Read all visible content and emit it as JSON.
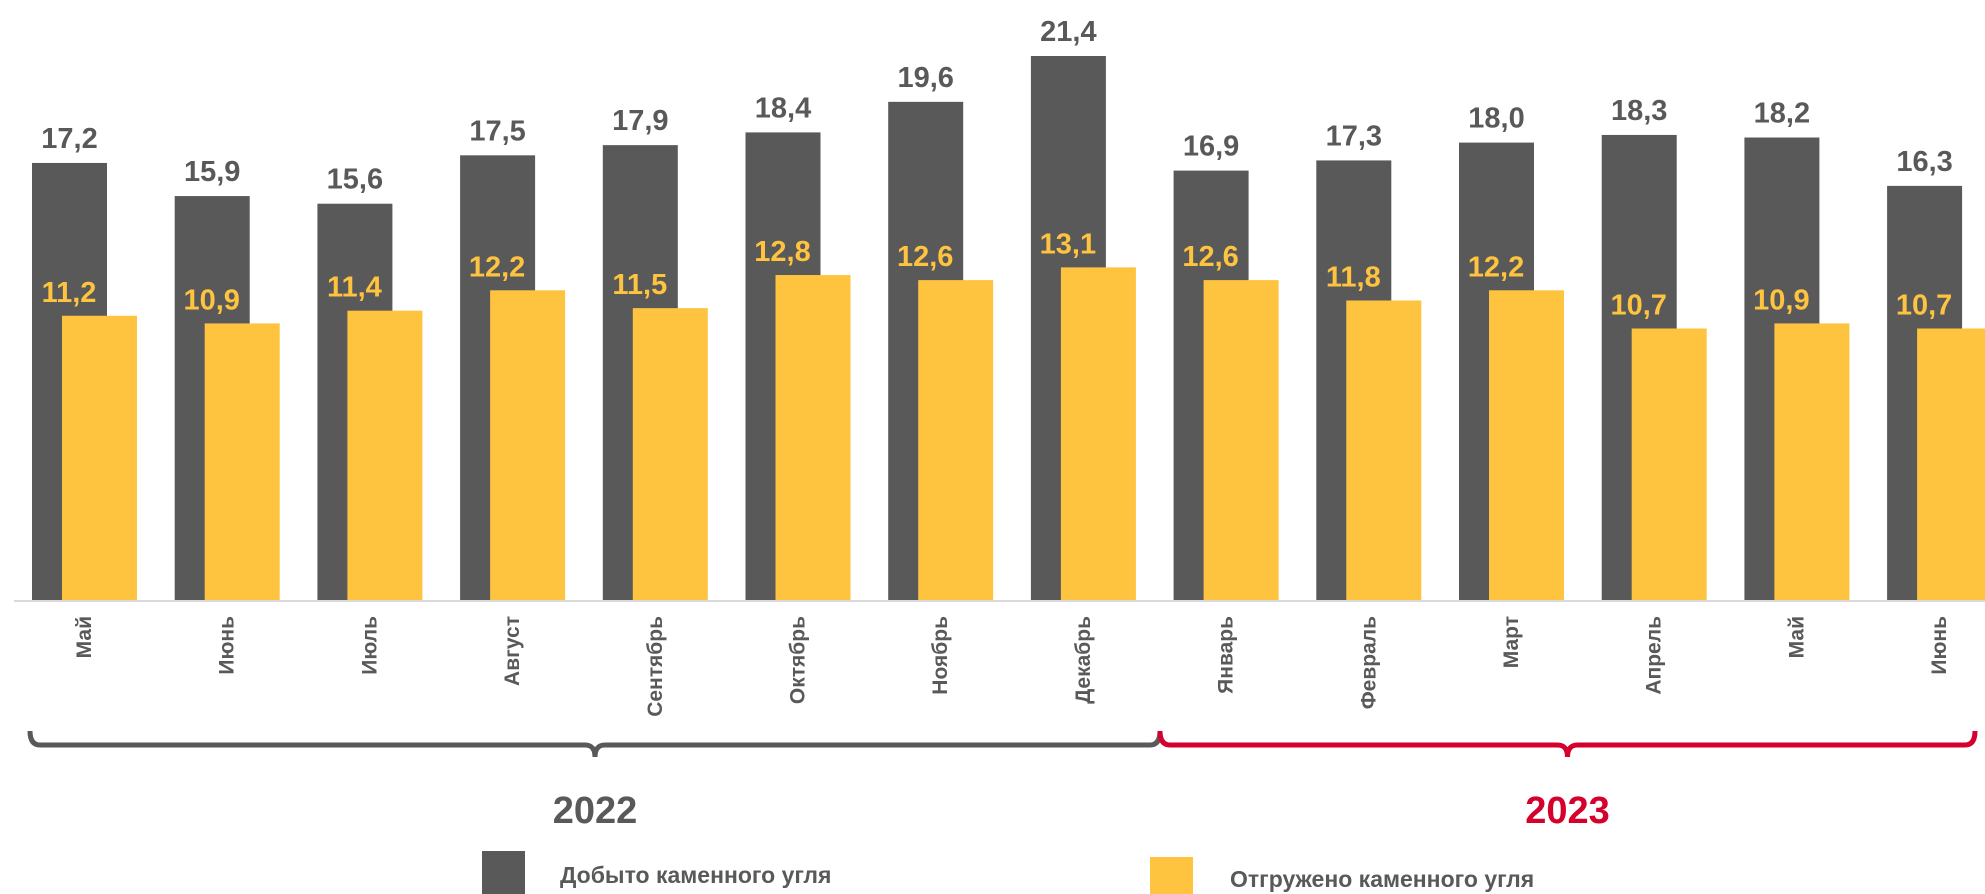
{
  "chart_data": {
    "type": "bar",
    "categories": [
      "Май",
      "Июнь",
      "Июль",
      "Август",
      "Сентябрь",
      "Октябрь",
      "Ноябрь",
      "Декабрь",
      "Январь",
      "Февраль",
      "Март",
      "Апрель",
      "Май",
      "Июнь"
    ],
    "series": [
      {
        "name": "Добыто каменного угля",
        "color": "#595959",
        "values": [
          17.2,
          15.9,
          15.6,
          17.5,
          17.9,
          18.4,
          19.6,
          21.4,
          16.9,
          17.3,
          18.0,
          18.3,
          18.2,
          16.3
        ],
        "labels": [
          "17,2",
          "15,9",
          "15,6",
          "17,5",
          "17,9",
          "18,4",
          "19,6",
          "21,4",
          "16,9",
          "17,3",
          "18,0",
          "18,3",
          "18,2",
          "16,3"
        ]
      },
      {
        "name": "Отгружено каменного угля",
        "color": "#FEC33F",
        "values": [
          11.2,
          10.9,
          11.4,
          12.2,
          11.5,
          12.8,
          12.6,
          13.1,
          12.6,
          11.8,
          12.2,
          10.7,
          10.9,
          10.7
        ],
        "labels": [
          "11,2",
          "10,9",
          "11,4",
          "12,2",
          "11,5",
          "12,8",
          "12,6",
          "13,1",
          "12,6",
          "11,8",
          "12,2",
          "10,7",
          "10,9",
          "10,7"
        ]
      }
    ],
    "ylim": [
      0,
      21.4
    ],
    "grid": false,
    "legend_position": "bottom",
    "groups": [
      {
        "label": "2022",
        "color": "#595959",
        "start": 0,
        "end": 7
      },
      {
        "label": "2023",
        "color": "#D5002C",
        "start": 8,
        "end": 13
      }
    ]
  }
}
